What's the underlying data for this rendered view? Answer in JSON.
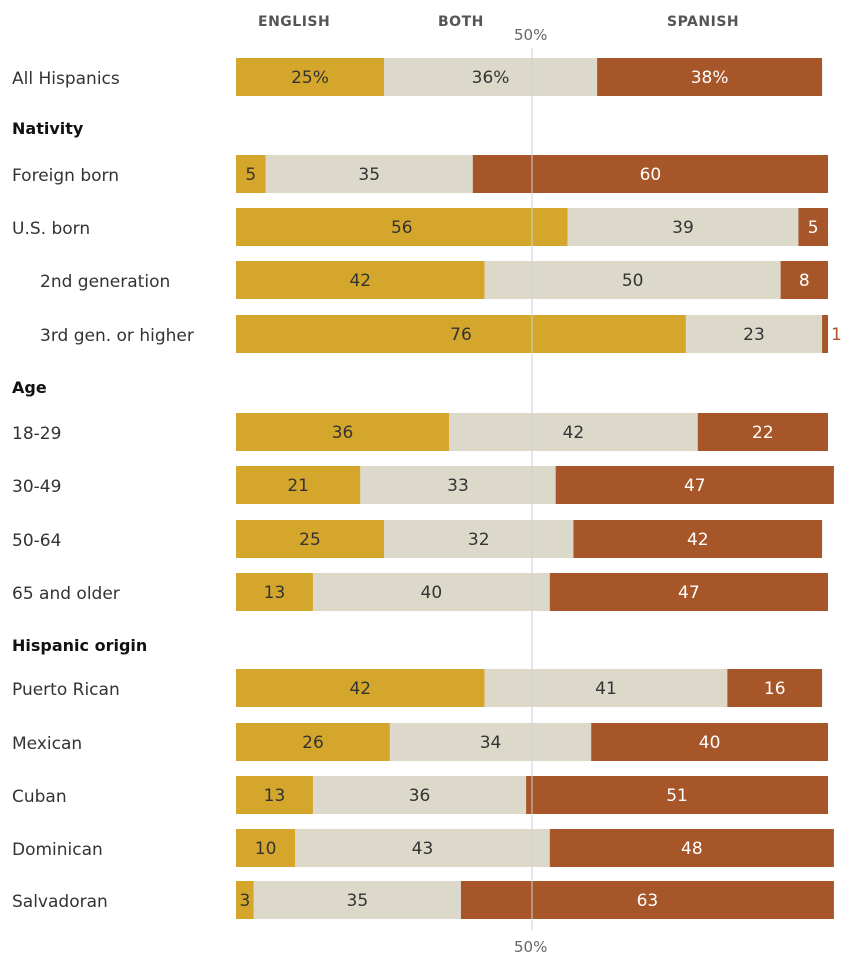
{
  "headers": {
    "english": "ENGLISH",
    "both": "BOTH",
    "spanish": "SPANISH"
  },
  "midline_label": "50%",
  "colors": {
    "english": "#d4a72c",
    "both": "#dcd9cb",
    "spanish": "#a65628",
    "text_dark": "#333333",
    "text_light": "#ffffff",
    "midline": "#d0d0d0"
  },
  "chart_data": {
    "type": "bar",
    "stacked": true,
    "orientation": "horizontal",
    "series_names": [
      "ENGLISH",
      "BOTH",
      "SPANISH"
    ],
    "rows": [
      {
        "kind": "bar",
        "label": "All Hispanics",
        "values": [
          25,
          36,
          38
        ],
        "value_labels": [
          "25%",
          "36%",
          "38%"
        ]
      },
      {
        "kind": "group",
        "label": "Nativity"
      },
      {
        "kind": "bar",
        "label": "Foreign born",
        "values": [
          5,
          35,
          60
        ],
        "value_labels": [
          "5",
          "35",
          "60"
        ]
      },
      {
        "kind": "bar",
        "label": "U.S. born",
        "values": [
          56,
          39,
          5
        ],
        "value_labels": [
          "56",
          "39",
          "5"
        ]
      },
      {
        "kind": "bar",
        "label": "2nd generation",
        "indent": true,
        "values": [
          42,
          50,
          8
        ],
        "value_labels": [
          "42",
          "50",
          "8"
        ]
      },
      {
        "kind": "bar",
        "label": "3rd gen. or higher",
        "indent": true,
        "values": [
          76,
          23,
          1
        ],
        "value_labels": [
          "76",
          "23",
          "1"
        ]
      },
      {
        "kind": "group",
        "label": "Age"
      },
      {
        "kind": "bar",
        "label": "18-29",
        "values": [
          36,
          42,
          22
        ],
        "value_labels": [
          "36",
          "42",
          "22"
        ]
      },
      {
        "kind": "bar",
        "label": "30-49",
        "values": [
          21,
          33,
          47
        ],
        "value_labels": [
          "21",
          "33",
          "47"
        ]
      },
      {
        "kind": "bar",
        "label": "50-64",
        "values": [
          25,
          32,
          42
        ],
        "value_labels": [
          "25",
          "32",
          "42"
        ]
      },
      {
        "kind": "bar",
        "label": "65 and older",
        "values": [
          13,
          40,
          47
        ],
        "value_labels": [
          "13",
          "40",
          "47"
        ]
      },
      {
        "kind": "group",
        "label": "Hispanic origin"
      },
      {
        "kind": "bar",
        "label": "Puerto Rican",
        "values": [
          42,
          41,
          16
        ],
        "value_labels": [
          "42",
          "41",
          "16"
        ]
      },
      {
        "kind": "bar",
        "label": "Mexican",
        "values": [
          26,
          34,
          40
        ],
        "value_labels": [
          "26",
          "34",
          "40"
        ]
      },
      {
        "kind": "bar",
        "label": "Cuban",
        "values": [
          13,
          36,
          51
        ],
        "value_labels": [
          "13",
          "36",
          "51"
        ]
      },
      {
        "kind": "bar",
        "label": "Dominican",
        "values": [
          10,
          43,
          48
        ],
        "value_labels": [
          "10",
          "43",
          "48"
        ]
      },
      {
        "kind": "bar",
        "label": "Salvadoran",
        "values": [
          3,
          35,
          63
        ],
        "value_labels": [
          "3",
          "35",
          "63"
        ]
      }
    ],
    "xlim": [
      0,
      100
    ],
    "reference_line": 50
  }
}
